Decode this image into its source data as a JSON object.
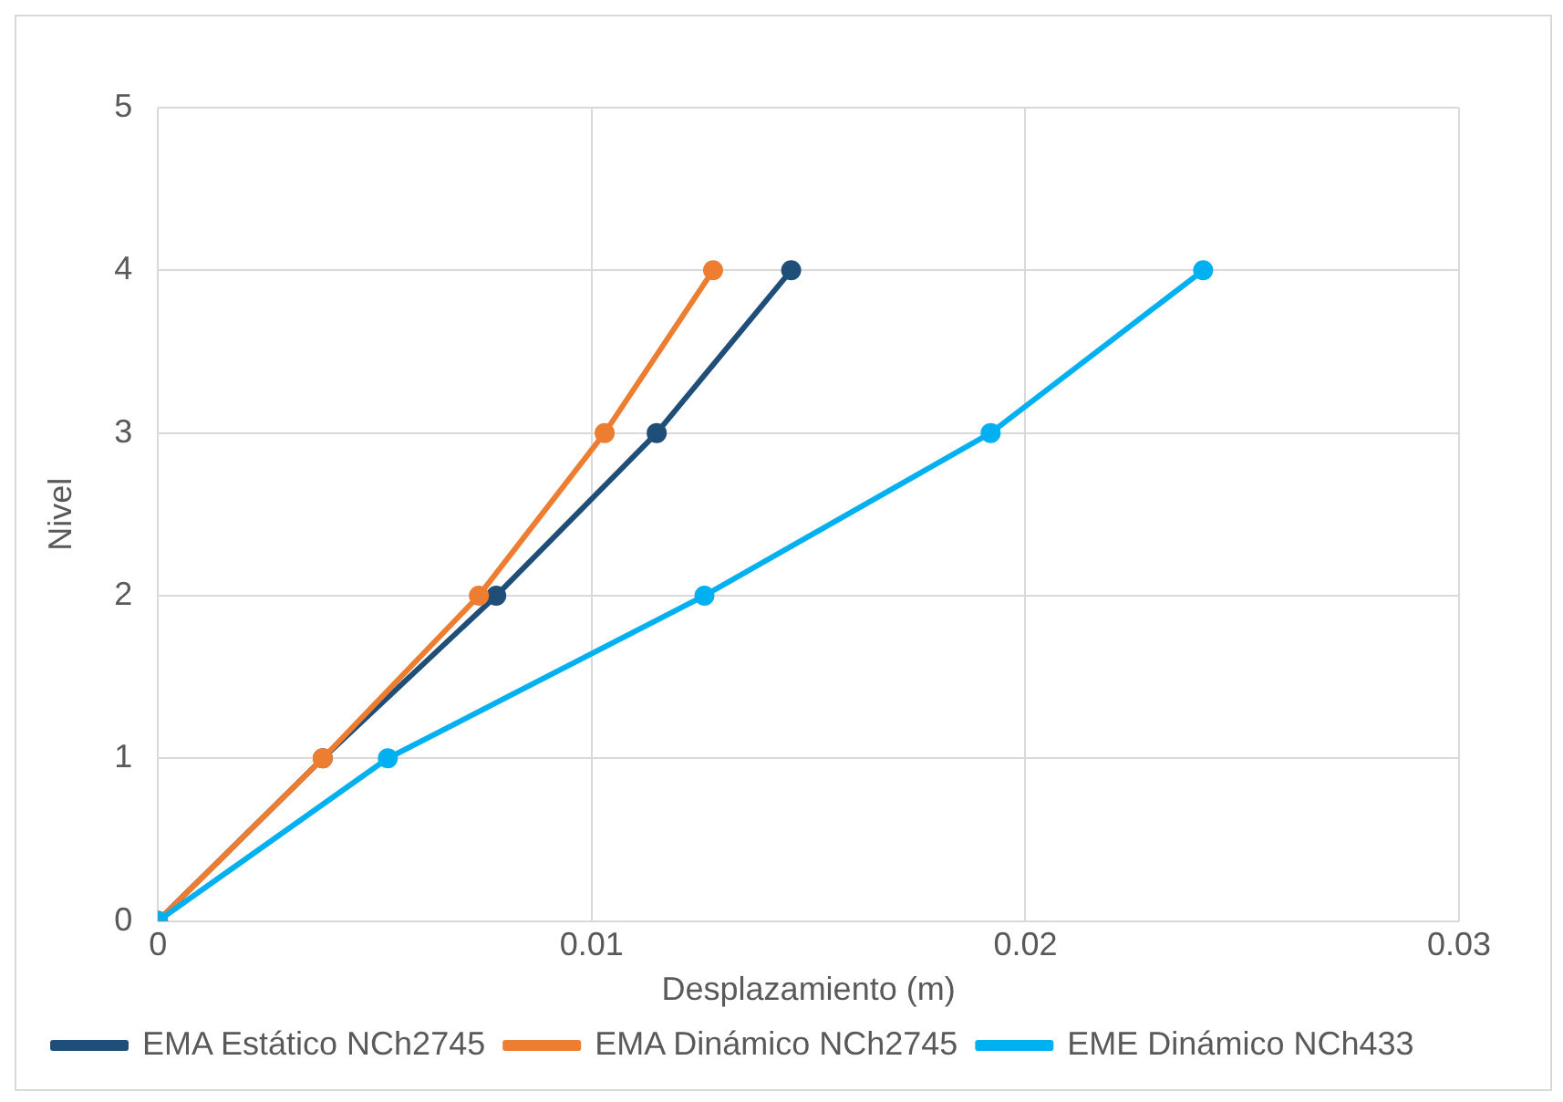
{
  "chart_data": {
    "type": "line",
    "xlabel": "Desplazamiento (m)",
    "ylabel": "Nivel",
    "xlim": [
      0,
      0.03
    ],
    "xticks": [
      0,
      0.01,
      0.02,
      0.03
    ],
    "ylim": [
      0,
      5
    ],
    "yticks": [
      0,
      1,
      2,
      3,
      4,
      5
    ],
    "grid": true,
    "legend": "bottom",
    "marker": "circle",
    "line_style": "solid",
    "series": [
      {
        "name": "EMA Estático NCh2745",
        "color": "#1f4e79",
        "x": [
          0,
          0.0038,
          0.0078,
          0.0115,
          0.0146
        ],
        "values": [
          0,
          1,
          2,
          3,
          4
        ]
      },
      {
        "name": "EMA Dinámico NCh2745",
        "color": "#ed7d31",
        "x": [
          0,
          0.0038,
          0.0074,
          0.0103,
          0.0128
        ],
        "values": [
          0,
          1,
          2,
          3,
          4
        ]
      },
      {
        "name": "EME Dinámico NCh433",
        "color": "#00b0f0",
        "x": [
          0,
          0.0053,
          0.0126,
          0.0192,
          0.0241
        ],
        "values": [
          0,
          1,
          2,
          3,
          4
        ]
      }
    ]
  }
}
